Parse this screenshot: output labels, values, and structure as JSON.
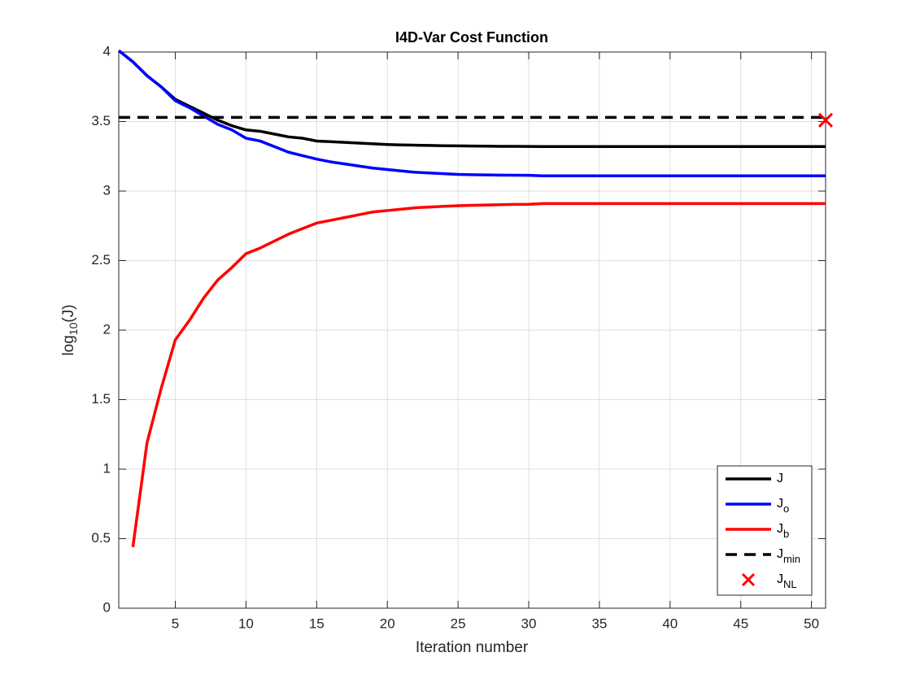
{
  "chart_data": {
    "type": "line",
    "title": "I4D-Var Cost Function",
    "xlabel": "Iteration number",
    "ylabel_parts": [
      "log",
      "10",
      "(J)"
    ],
    "x": [
      1,
      2,
      3,
      4,
      5,
      6,
      7,
      8,
      9,
      10,
      11,
      12,
      13,
      14,
      15,
      16,
      17,
      18,
      19,
      20,
      21,
      22,
      23,
      24,
      25,
      26,
      27,
      28,
      29,
      30,
      31,
      32,
      33,
      34,
      35,
      36,
      37,
      38,
      39,
      40,
      41,
      42,
      43,
      44,
      45,
      46,
      47,
      48,
      49,
      50,
      51
    ],
    "series": [
      {
        "name": "J",
        "subscript": null,
        "color": "#000000",
        "values": [
          4.01,
          3.93,
          3.83,
          3.75,
          3.66,
          3.61,
          3.56,
          3.51,
          3.47,
          3.44,
          3.43,
          3.41,
          3.39,
          3.38,
          3.36,
          3.355,
          3.35,
          3.345,
          3.34,
          3.335,
          3.332,
          3.33,
          3.328,
          3.326,
          3.325,
          3.324,
          3.323,
          3.322,
          3.322,
          3.321,
          3.32,
          3.32,
          3.32,
          3.32,
          3.32,
          3.32,
          3.32,
          3.32,
          3.32,
          3.32,
          3.32,
          3.32,
          3.32,
          3.32,
          3.32,
          3.32,
          3.32,
          3.32,
          3.32,
          3.32,
          3.32
        ]
      },
      {
        "name": "J",
        "subscript": "o",
        "color": "#0000ff",
        "values": [
          4.01,
          3.93,
          3.83,
          3.75,
          3.65,
          3.6,
          3.54,
          3.48,
          3.44,
          3.38,
          3.36,
          3.32,
          3.28,
          3.255,
          3.23,
          3.21,
          3.195,
          3.18,
          3.165,
          3.155,
          3.145,
          3.135,
          3.13,
          3.125,
          3.12,
          3.118,
          3.116,
          3.115,
          3.114,
          3.113,
          3.11,
          3.11,
          3.11,
          3.11,
          3.11,
          3.11,
          3.11,
          3.11,
          3.11,
          3.11,
          3.11,
          3.11,
          3.11,
          3.11,
          3.11,
          3.11,
          3.11,
          3.11,
          3.11,
          3.11,
          3.11
        ]
      },
      {
        "name": "J",
        "subscript": "b",
        "color": "#ff0000",
        "values": [
          null,
          0.44,
          1.19,
          1.58,
          1.93,
          2.07,
          2.23,
          2.36,
          2.45,
          2.55,
          2.59,
          2.64,
          2.69,
          2.73,
          2.77,
          2.79,
          2.81,
          2.83,
          2.85,
          2.86,
          2.87,
          2.88,
          2.885,
          2.89,
          2.895,
          2.898,
          2.9,
          2.902,
          2.904,
          2.905,
          2.91,
          2.91,
          2.91,
          2.91,
          2.91,
          2.91,
          2.91,
          2.91,
          2.91,
          2.91,
          2.91,
          2.91,
          2.91,
          2.91,
          2.91,
          2.91,
          2.91,
          2.91,
          2.91,
          2.91,
          2.91
        ]
      }
    ],
    "hlines": [
      {
        "name": "J",
        "subscript": "min",
        "color": "#000000",
        "dashed": true,
        "value": 3.53
      }
    ],
    "markers": [
      {
        "name": "J",
        "subscript": "NL",
        "color": "#ff0000",
        "shape": "x",
        "x": 51,
        "y": 3.51
      }
    ],
    "xlim": [
      1,
      51
    ],
    "xticks": [
      5,
      10,
      15,
      20,
      25,
      30,
      35,
      40,
      45,
      50
    ],
    "ylim": [
      0,
      4
    ],
    "yticks": [
      0,
      0.5,
      1,
      1.5,
      2,
      2.5,
      3,
      3.5,
      4
    ],
    "grid": true,
    "legend": "lower right"
  }
}
